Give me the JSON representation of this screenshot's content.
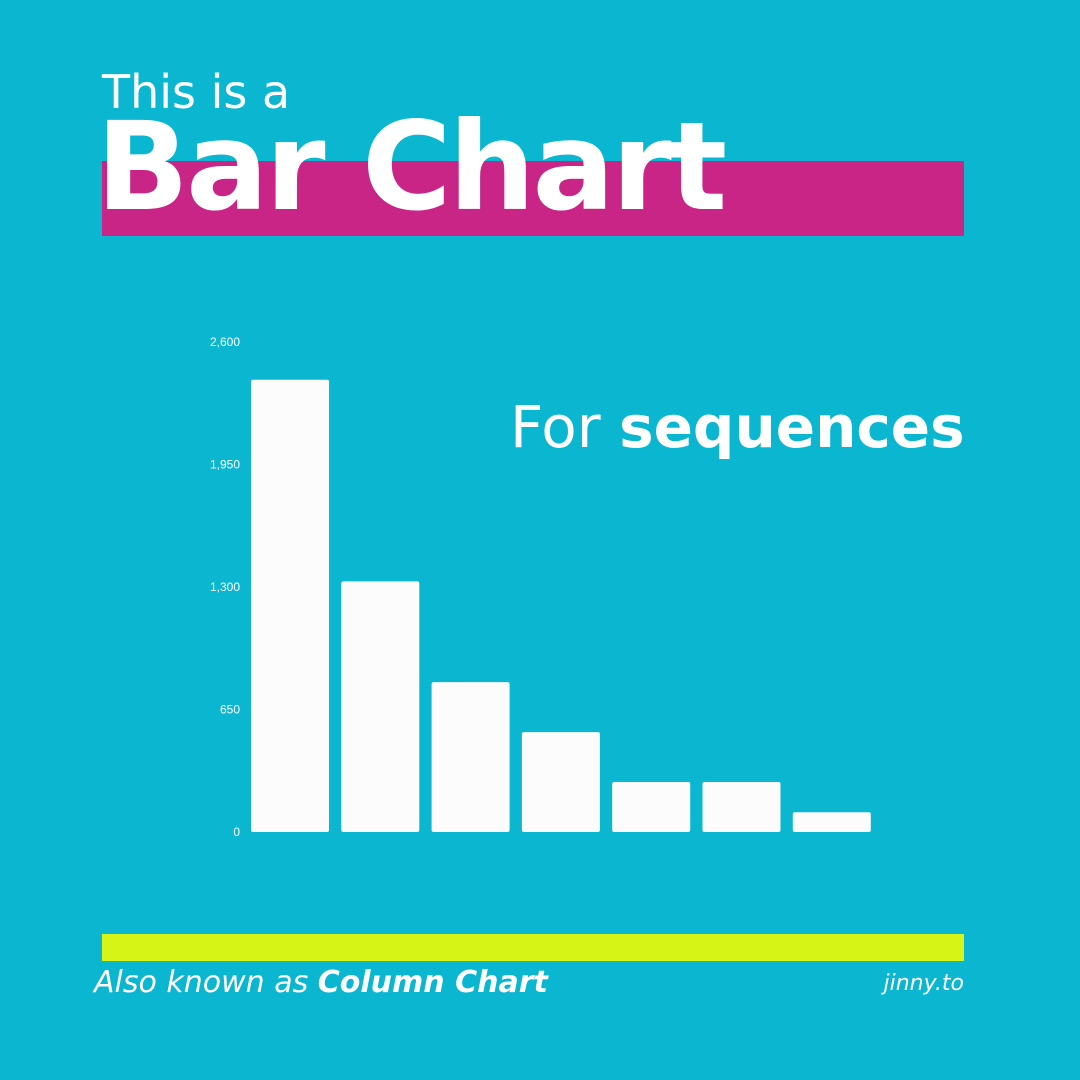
{
  "headline": {
    "pre": "This is a",
    "main": "Bar Chart",
    "band_color": "#c92586"
  },
  "callout": {
    "prefix": "For ",
    "emphasis": "sequences"
  },
  "footer": {
    "prefix": "Also known as ",
    "emphasis": "Column Chart",
    "site": "jinny.to",
    "accent_color": "#d6f516"
  },
  "chart_data": {
    "type": "bar",
    "categories": [
      "",
      "",
      "",
      "",
      "",
      "",
      ""
    ],
    "values": [
      2400,
      1330,
      795,
      530,
      265,
      265,
      105
    ],
    "title": "",
    "xlabel": "",
    "ylabel": "",
    "ylim": [
      0,
      2600
    ],
    "yticks": [
      0,
      650,
      1300,
      1950,
      2600
    ],
    "ytick_labels": [
      "0",
      "650",
      "1,300",
      "1,950",
      "2,600"
    ],
    "grid": false,
    "bar_color": "#fcfcfc"
  }
}
